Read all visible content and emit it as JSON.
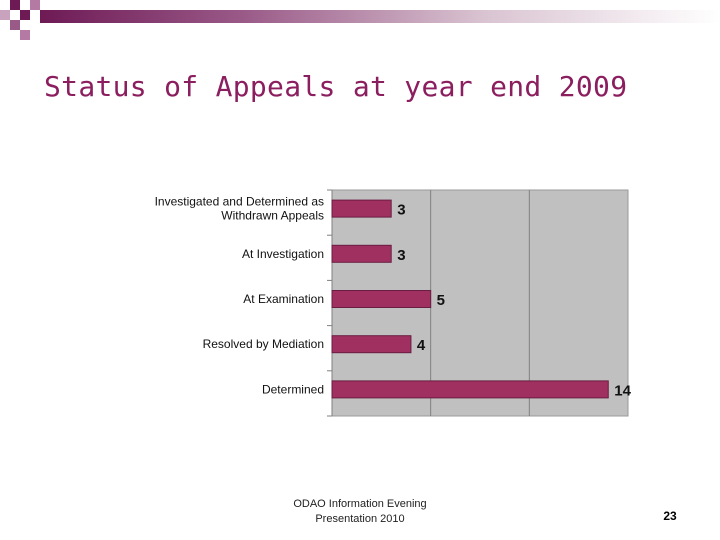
{
  "slide": {
    "title": "Status of Appeals at year end 2009",
    "footer_line1": "ODAO Information Evening",
    "footer_line2": "Presentation 2010",
    "page_number": "23",
    "accent_color": "#8b1e5f",
    "bar_color": "#a0305f"
  },
  "chart_data": {
    "type": "bar",
    "orientation": "horizontal",
    "categories": [
      [
        "Investigated and Determined as",
        "Withdrawn Appeals"
      ],
      [
        "At Investigation"
      ],
      [
        "At Examination"
      ],
      [
        "Resolved by Mediation"
      ],
      [
        "Determined"
      ]
    ],
    "values": [
      3,
      3,
      5,
      4,
      14
    ],
    "xlim": [
      0,
      15
    ],
    "grid": true,
    "plot_background": "#c0c0c0",
    "data_labels": true
  }
}
